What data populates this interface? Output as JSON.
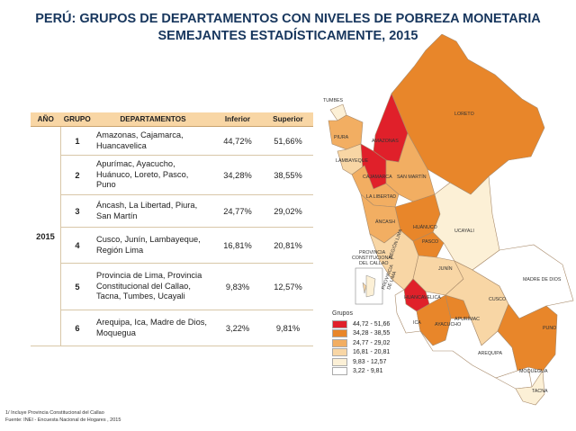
{
  "title": {
    "line1": "PERÚ: GRUPOS DE DEPARTAMENTOS CON NIVELES DE POBREZA MONETARIA",
    "line2": "SEMEJANTES ESTADÍSTICAMENTE, 2015"
  },
  "table": {
    "headers": [
      "AÑO",
      "GRUPO",
      "DEPARTAMENTOS",
      "Inferior",
      "Superior"
    ],
    "year": "2015",
    "rows": [
      {
        "group": "1",
        "departments": "Amazonas, Cajamarca, Huancavelica",
        "lower": "44,72%",
        "upper": "51,66%"
      },
      {
        "group": "2",
        "departments": "Apurímac, Ayacucho, Huánuco, Loreto, Pasco, Puno",
        "lower": "34,28%",
        "upper": "38,55%"
      },
      {
        "group": "3",
        "departments": "Áncash, La Libertad, Piura, San Martín",
        "lower": "24,77%",
        "upper": "29,02%"
      },
      {
        "group": "4",
        "departments": "Cusco, Junín, Lambayeque, Región Lima",
        "lower": "16,81%",
        "upper": "20,81%"
      },
      {
        "group": "5",
        "departments": "Provincia de Lima, Provincia Constitucional del Callao, Tacna, Tumbes, Ucayali",
        "lower": "9,83%",
        "upper": "12,57%"
      },
      {
        "group": "6",
        "departments": "Arequipa, Ica, Madre de Dios, Moquegua",
        "lower": "3,22%",
        "upper": "9,81%"
      }
    ]
  },
  "legend": {
    "title": "Grupos",
    "items": [
      {
        "label": "44,72 - 51,66",
        "color": "#e0202a"
      },
      {
        "label": "34,28 - 38,55",
        "color": "#e8862a"
      },
      {
        "label": "24,77 - 29,02",
        "color": "#f2ae62"
      },
      {
        "label": "16,81 - 20,81",
        "color": "#f8d6a5"
      },
      {
        "label": "9,83 - 12,57",
        "color": "#fcf0d6"
      },
      {
        "label": "3,22 - 9,81",
        "color": "#ffffff"
      }
    ]
  },
  "map_labels": {
    "tumbes": "TUMBES",
    "loreto": "LORETO",
    "piura": "PIURA",
    "amazonas": "AMAZONAS",
    "lambayeque": "LAMBAYEQUE",
    "cajamarca": "CAJAMARCA",
    "san_martin": "SAN MARTÍN",
    "la_libertad": "LA LIBERTAD",
    "ancash": "ÁNCASH",
    "huanuco": "HUÁNUCO",
    "ucayali": "UCAYALI",
    "pasco": "PASCO",
    "region_lima": "REGIÓN LIMA",
    "provincia_constitucional_1": "PROVINCIA",
    "provincia_constitucional_2": "CONSTITUCIONAL",
    "provincia_constitucional_3": "DEL CALLAO",
    "provincia_lima_1": "PROVINCIA",
    "provincia_lima_2": "DE LIMA",
    "junin": "JUNÍN",
    "madre_de_dios": "MADRE DE DIOS",
    "huancavelica": "HUANCAVELICA",
    "cusco": "CUSCO",
    "ica": "ICA",
    "ayacucho": "AYACUCHO",
    "apurimac": "APURÍMAC",
    "puno": "PUNO",
    "arequipa": "AREQUIPA",
    "moquegua": "MOQUEGUA",
    "tacna": "TACNA"
  },
  "notes": {
    "line1": "1/ Incluye Provincia Constitucional del Callao",
    "line2": "Fuente: INEI - Encuesta Nacional de Hogares , 2015"
  }
}
